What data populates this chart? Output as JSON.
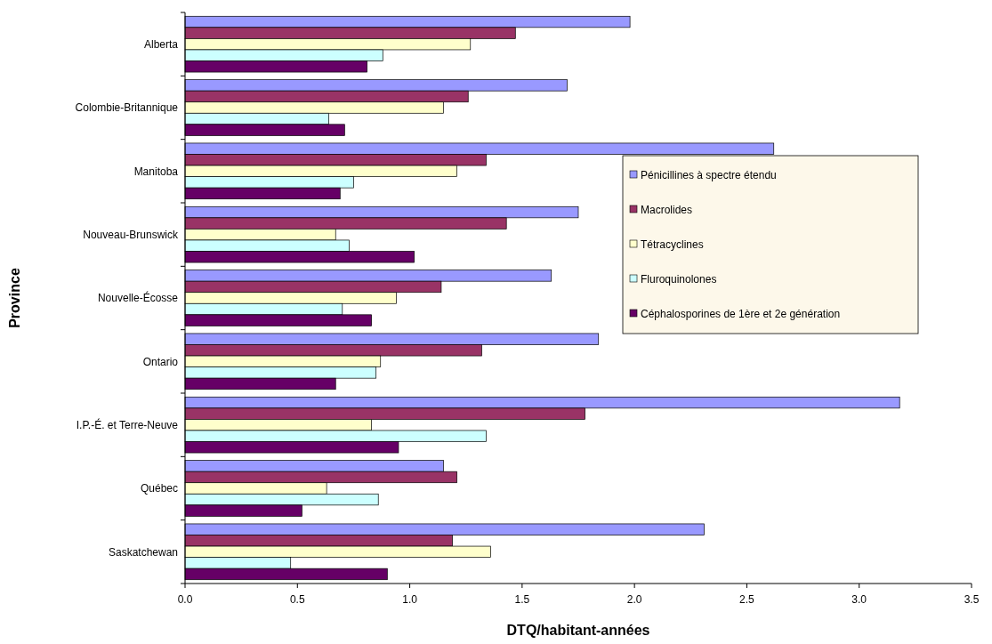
{
  "chart_data": {
    "type": "bar",
    "orientation": "horizontal",
    "xlabel": "DTQ/habitant-années",
    "ylabel": "Province",
    "categories": [
      "Alberta",
      "Colombie-Britannique",
      "Manitoba",
      "Nouveau-Brunswick",
      "Nouvelle-Écosse",
      "Ontario",
      "I.P.-É. et Terre-Neuve",
      "Québec",
      "Saskatchewan"
    ],
    "series": [
      {
        "name": "Pénicillines à spectre étendu",
        "color": "#9999ff",
        "values": [
          1.98,
          1.7,
          2.62,
          1.75,
          1.63,
          1.84,
          3.18,
          1.15,
          2.31
        ]
      },
      {
        "name": "Macrolides",
        "color": "#993366",
        "values": [
          1.47,
          1.26,
          1.34,
          1.43,
          1.14,
          1.32,
          1.78,
          1.21,
          1.19
        ]
      },
      {
        "name": "Tétracyclines",
        "color": "#ffffcc",
        "values": [
          1.27,
          1.15,
          1.21,
          0.67,
          0.94,
          0.87,
          0.83,
          0.63,
          1.36
        ]
      },
      {
        "name": "Fluroquinolones",
        "color": "#ccffff",
        "values": [
          0.88,
          0.64,
          0.75,
          0.73,
          0.7,
          0.85,
          1.34,
          0.86,
          0.47
        ]
      },
      {
        "name": "Céphalosporines de 1ère et 2e génération",
        "color": "#660066",
        "values": [
          0.81,
          0.71,
          0.69,
          1.02,
          0.83,
          0.67,
          0.95,
          0.52,
          0.9
        ]
      }
    ],
    "xlim": [
      0,
      3.5
    ],
    "xticks": [
      {
        "value": 0,
        "label": "0.0"
      },
      {
        "value": 0.5,
        "label": "0.5"
      },
      {
        "value": 1,
        "label": "1.0"
      },
      {
        "value": 1.5,
        "label": "1.5"
      },
      {
        "value": 2,
        "label": "2.0"
      },
      {
        "value": 2.5,
        "label": "2.5"
      },
      {
        "value": 3,
        "label": "3.0"
      },
      {
        "value": 3.5,
        "label": "3.5"
      }
    ],
    "grid": false,
    "legend": "right"
  }
}
